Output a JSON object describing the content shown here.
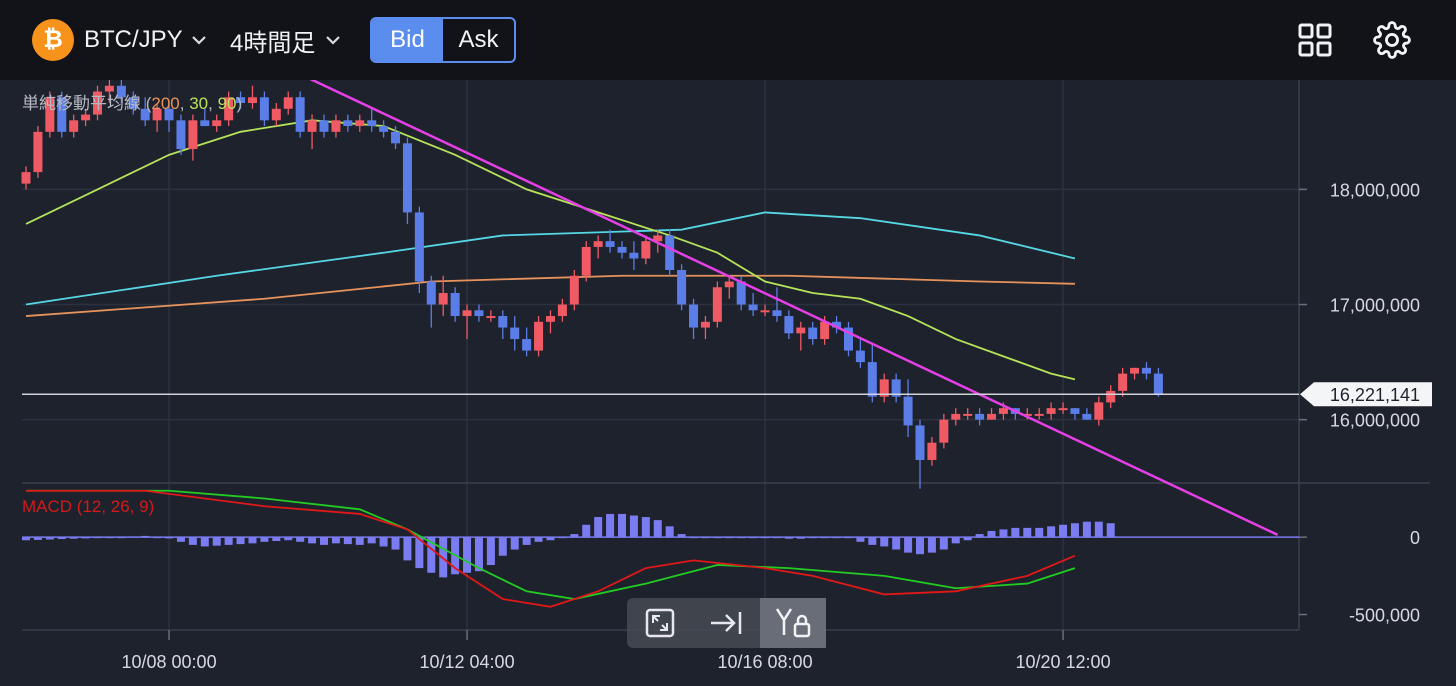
{
  "header": {
    "coin_icon": "bitcoin-icon",
    "coin_symbol": "₿",
    "pair": "BTC/JPY",
    "timeframe": "4時間足",
    "bid_label": "Bid",
    "ask_label": "Ask",
    "layout_icon": "grid-layout-icon",
    "settings_icon": "gear-icon"
  },
  "colors": {
    "up": "#ef5a64",
    "down": "#5b7de8",
    "trendline": "#e440e6",
    "ma200": "#e8935c",
    "ma30": "#56d8e4",
    "ma90": "#b6e35a",
    "macd_line": "#e01818",
    "signal_line": "#22cc22",
    "histogram": "#7b7cf2"
  },
  "toolbar": {
    "items": [
      {
        "icon": "fullscreen-icon"
      },
      {
        "icon": "scroll-to-latest-icon"
      },
      {
        "icon": "y-axis-lock-icon"
      }
    ]
  },
  "chart_data": [
    {
      "type": "candlestick",
      "indicator_label_prefix": "単純移動平均線 (",
      "indicator_params": [
        "200",
        "30",
        "90"
      ],
      "indicator_label_suffix": ")",
      "y_ticks": [
        "18,000,000",
        "17,000,000",
        "16,000,000"
      ],
      "y_tick_values": [
        18000000,
        17000000,
        16000000
      ],
      "ylim": [
        15450000,
        18950000
      ],
      "x_ticks": [
        "10/08 00:00",
        "10/12 04:00",
        "10/16 08:00",
        "10/20 12:00"
      ],
      "x_tick_index": [
        12,
        37,
        62,
        87
      ],
      "current_price": 16221141,
      "current_price_label": "16,221,141",
      "candles": [
        [
          18050000,
          18200000,
          18000000,
          18150000
        ],
        [
          18150000,
          18550000,
          18100000,
          18500000
        ],
        [
          18500000,
          18850000,
          18450000,
          18800000
        ],
        [
          18800000,
          18850000,
          18450000,
          18500000
        ],
        [
          18500000,
          18650000,
          18450000,
          18600000
        ],
        [
          18600000,
          18700000,
          18550000,
          18650000
        ],
        [
          18650000,
          18900000,
          18600000,
          18850000
        ],
        [
          18850000,
          18950000,
          18750000,
          18900000
        ],
        [
          18900000,
          18950000,
          18750000,
          18800000
        ],
        [
          18800000,
          18850000,
          18650000,
          18700000
        ],
        [
          18700000,
          18800000,
          18550000,
          18600000
        ],
        [
          18600000,
          18750000,
          18500000,
          18700000
        ],
        [
          18700000,
          18750000,
          18500000,
          18600000
        ],
        [
          18600000,
          18650000,
          18300000,
          18350000
        ],
        [
          18350000,
          18650000,
          18250000,
          18600000
        ],
        [
          18600000,
          18700000,
          18550000,
          18550000
        ],
        [
          18550000,
          18650000,
          18500000,
          18600000
        ],
        [
          18600000,
          18850000,
          18550000,
          18800000
        ],
        [
          18800000,
          18850000,
          18700000,
          18750000
        ],
        [
          18750000,
          18900000,
          18700000,
          18800000
        ],
        [
          18800000,
          18850000,
          18550000,
          18600000
        ],
        [
          18600000,
          18750000,
          18550000,
          18700000
        ],
        [
          18700000,
          18850000,
          18650000,
          18800000
        ],
        [
          18800000,
          18850000,
          18450000,
          18500000
        ],
        [
          18500000,
          18650000,
          18350000,
          18600000
        ],
        [
          18600000,
          18650000,
          18450000,
          18500000
        ],
        [
          18500000,
          18650000,
          18450000,
          18600000
        ],
        [
          18600000,
          18650000,
          18500000,
          18550000
        ],
        [
          18550000,
          18650000,
          18500000,
          18600000
        ],
        [
          18600000,
          18700000,
          18500000,
          18550000
        ],
        [
          18550000,
          18600000,
          18450000,
          18500000
        ],
        [
          18500000,
          18550000,
          18350000,
          18400000
        ],
        [
          18400000,
          18450000,
          17700000,
          17800000
        ],
        [
          17800000,
          17850000,
          17100000,
          17200000
        ],
        [
          17200000,
          17250000,
          16800000,
          17000000
        ],
        [
          17000000,
          17250000,
          16900000,
          17100000
        ],
        [
          17100000,
          17150000,
          16850000,
          16900000
        ],
        [
          16900000,
          17000000,
          16700000,
          16950000
        ],
        [
          16950000,
          17000000,
          16850000,
          16900000
        ],
        [
          16900000,
          16950000,
          16850000,
          16900000
        ],
        [
          16900000,
          16950000,
          16700000,
          16800000
        ],
        [
          16800000,
          16900000,
          16600000,
          16700000
        ],
        [
          16700000,
          16800000,
          16550000,
          16600000
        ],
        [
          16600000,
          16900000,
          16550000,
          16850000
        ],
        [
          16850000,
          16950000,
          16750000,
          16900000
        ],
        [
          16900000,
          17050000,
          16850000,
          17000000
        ],
        [
          17000000,
          17300000,
          16950000,
          17250000
        ],
        [
          17250000,
          17550000,
          17200000,
          17500000
        ],
        [
          17500000,
          17600000,
          17400000,
          17550000
        ],
        [
          17550000,
          17650000,
          17450000,
          17500000
        ],
        [
          17500000,
          17550000,
          17400000,
          17450000
        ],
        [
          17450000,
          17550000,
          17300000,
          17400000
        ],
        [
          17400000,
          17600000,
          17350000,
          17550000
        ],
        [
          17550000,
          17650000,
          17450000,
          17600000
        ],
        [
          17600000,
          17650000,
          17250000,
          17300000
        ],
        [
          17300000,
          17350000,
          16950000,
          17000000
        ],
        [
          17000000,
          17050000,
          16700000,
          16800000
        ],
        [
          16800000,
          16900000,
          16700000,
          16850000
        ],
        [
          16850000,
          17200000,
          16800000,
          17150000
        ],
        [
          17150000,
          17250000,
          17050000,
          17200000
        ],
        [
          17200000,
          17250000,
          16950000,
          17000000
        ],
        [
          17000000,
          17100000,
          16900000,
          16950000
        ],
        [
          16950000,
          17000000,
          16900000,
          16950000
        ],
        [
          16950000,
          17150000,
          16850000,
          16900000
        ],
        [
          16900000,
          16950000,
          16700000,
          16750000
        ],
        [
          16750000,
          16850000,
          16600000,
          16800000
        ],
        [
          16800000,
          16850000,
          16650000,
          16700000
        ],
        [
          16700000,
          16900000,
          16650000,
          16850000
        ],
        [
          16850000,
          16900000,
          16750000,
          16800000
        ],
        [
          16800000,
          16850000,
          16550000,
          16600000
        ],
        [
          16600000,
          16700000,
          16450000,
          16500000
        ],
        [
          16500000,
          16650000,
          16150000,
          16200000
        ],
        [
          16200000,
          16400000,
          16150000,
          16350000
        ],
        [
          16350000,
          16400000,
          16150000,
          16200000
        ],
        [
          16200000,
          16350000,
          15850000,
          15950000
        ],
        [
          15950000,
          16000000,
          15400000,
          15650000
        ],
        [
          15650000,
          15850000,
          15600000,
          15800000
        ],
        [
          15800000,
          16050000,
          15750000,
          16000000
        ],
        [
          16000000,
          16100000,
          15950000,
          16050000
        ],
        [
          16050000,
          16100000,
          16000000,
          16050000
        ],
        [
          16050000,
          16100000,
          15950000,
          16000000
        ],
        [
          16000000,
          16100000,
          16000000,
          16050000
        ],
        [
          16050000,
          16150000,
          16000000,
          16100000
        ],
        [
          16100000,
          16100000,
          16000000,
          16050000
        ],
        [
          16050000,
          16100000,
          16000000,
          16050000
        ],
        [
          16050000,
          16100000,
          16000000,
          16050000
        ],
        [
          16050000,
          16150000,
          16000000,
          16100000
        ],
        [
          16100000,
          16150000,
          16050000,
          16100000
        ],
        [
          16100000,
          16100000,
          16000000,
          16050000
        ],
        [
          16050000,
          16100000,
          16000000,
          16000000
        ],
        [
          16000000,
          16200000,
          15950000,
          16150000
        ],
        [
          16150000,
          16300000,
          16100000,
          16250000
        ],
        [
          16250000,
          16450000,
          16200000,
          16400000
        ],
        [
          16400000,
          16450000,
          16350000,
          16450000
        ],
        [
          16450000,
          16500000,
          16350000,
          16400000
        ],
        [
          16400000,
          16450000,
          16200000,
          16220000
        ]
      ],
      "series": [
        {
          "name": "200",
          "color_key": "ma200",
          "points": [
            [
              0,
              16900000
            ],
            [
              20,
              17050000
            ],
            [
              34,
              17200000
            ],
            [
              50,
              17250000
            ],
            [
              64,
              17250000
            ],
            [
              80,
              17200000
            ],
            [
              88,
              17180000
            ]
          ]
        },
        {
          "name": "30",
          "color_key": "ma30",
          "points": [
            [
              0,
              17000000
            ],
            [
              16,
              17250000
            ],
            [
              30,
              17450000
            ],
            [
              40,
              17600000
            ],
            [
              55,
              17650000
            ],
            [
              62,
              17800000
            ],
            [
              70,
              17750000
            ],
            [
              80,
              17600000
            ],
            [
              88,
              17400000
            ]
          ]
        },
        {
          "name": "90",
          "color_key": "ma90",
          "points": [
            [
              0,
              17700000
            ],
            [
              6,
              18000000
            ],
            [
              12,
              18300000
            ],
            [
              18,
              18500000
            ],
            [
              24,
              18600000
            ],
            [
              30,
              18550000
            ],
            [
              36,
              18300000
            ],
            [
              42,
              18000000
            ],
            [
              48,
              17800000
            ],
            [
              54,
              17600000
            ],
            [
              58,
              17450000
            ],
            [
              62,
              17200000
            ],
            [
              66,
              17100000
            ],
            [
              70,
              17050000
            ],
            [
              74,
              16900000
            ],
            [
              78,
              16700000
            ],
            [
              82,
              16550000
            ],
            [
              86,
              16400000
            ],
            [
              88,
              16350000
            ]
          ]
        }
      ],
      "trendline": {
        "from": [
          23,
          19000000
        ],
        "to": [
          105,
          15000000
        ]
      }
    },
    {
      "type": "macd",
      "label": "MACD (12, 26, 9)",
      "y_ticks": [
        "0",
        "-500,000"
      ],
      "y_tick_values": [
        0,
        -500000
      ],
      "ylim": [
        -600000,
        350000
      ],
      "histogram": [
        -20000,
        -18000,
        -15000,
        -12000,
        -10000,
        -8000,
        -5000,
        -3000,
        0,
        5000,
        8000,
        0,
        -8000,
        -30000,
        -50000,
        -60000,
        -55000,
        -50000,
        -45000,
        -40000,
        -30000,
        -25000,
        -20000,
        -30000,
        -40000,
        -50000,
        -40000,
        -45000,
        -50000,
        -40000,
        -60000,
        -80000,
        -150000,
        -200000,
        -230000,
        -260000,
        -240000,
        -230000,
        -220000,
        -180000,
        -120000,
        -80000,
        -50000,
        -30000,
        -20000,
        0,
        20000,
        80000,
        130000,
        150000,
        150000,
        140000,
        130000,
        110000,
        70000,
        20000,
        -5000,
        -5000,
        -5000,
        -5000,
        -5000,
        -5000,
        -5000,
        -5000,
        -10000,
        -10000,
        -5000,
        -5000,
        -5000,
        -5000,
        -30000,
        -50000,
        -60000,
        -80000,
        -100000,
        -110000,
        -100000,
        -80000,
        -40000,
        -20000,
        20000,
        40000,
        50000,
        60000,
        60000,
        60000,
        70000,
        80000,
        90000,
        100000,
        100000,
        90000
      ],
      "macd_line": [
        [
          0,
          300000
        ],
        [
          10,
          300000
        ],
        [
          20,
          200000
        ],
        [
          28,
          150000
        ],
        [
          32,
          50000
        ],
        [
          36,
          -200000
        ],
        [
          40,
          -400000
        ],
        [
          44,
          -450000
        ],
        [
          48,
          -350000
        ],
        [
          52,
          -200000
        ],
        [
          56,
          -150000
        ],
        [
          62,
          -200000
        ],
        [
          66,
          -250000
        ],
        [
          72,
          -370000
        ],
        [
          78,
          -350000
        ],
        [
          84,
          -250000
        ],
        [
          88,
          -120000
        ]
      ],
      "signal_line": [
        [
          0,
          300000
        ],
        [
          12,
          300000
        ],
        [
          20,
          250000
        ],
        [
          28,
          180000
        ],
        [
          32,
          50000
        ],
        [
          38,
          -200000
        ],
        [
          42,
          -350000
        ],
        [
          46,
          -400000
        ],
        [
          52,
          -300000
        ],
        [
          58,
          -180000
        ],
        [
          64,
          -200000
        ],
        [
          72,
          -250000
        ],
        [
          78,
          -330000
        ],
        [
          84,
          -300000
        ],
        [
          88,
          -200000
        ]
      ]
    }
  ]
}
